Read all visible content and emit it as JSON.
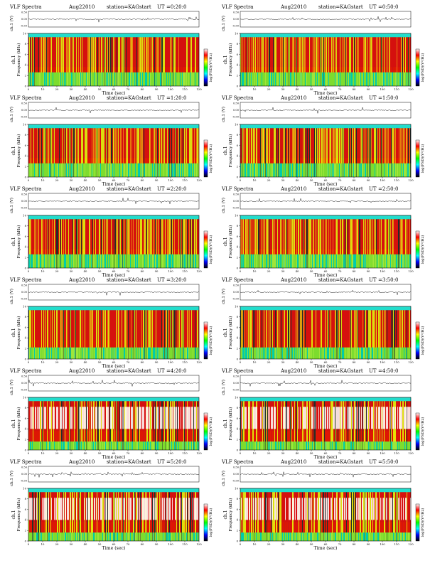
{
  "chart_data": [
    {
      "type": "heatmap",
      "title": "VLF Spectra",
      "date": "Aug22010",
      "station": "station=KAG",
      "start_label": "start",
      "ut_label": "UT",
      "start_ut": "=0:20:0",
      "xlabel": "Time (sec)",
      "ylabel": "Frequency (kHz)",
      "top_ylabel": "ch.1 (V)",
      "top_ticks": [
        "0.50",
        "0.00",
        "-0.50"
      ],
      "colorbar_label": "log(PSD)(V²/Hz)",
      "xlim": [
        0,
        120
      ],
      "ylim": [
        0,
        10
      ],
      "x_ticks": [
        0,
        10,
        20,
        30,
        40,
        50,
        60,
        70,
        80,
        90,
        100,
        110,
        120
      ],
      "y_ticks": [
        0,
        2,
        4,
        6,
        8,
        10
      ]
    },
    {
      "type": "heatmap",
      "title": "VLF Spectra",
      "date": "Aug22010",
      "station": "station=KAG",
      "start_label": "start",
      "ut_label": "UT",
      "start_ut": "=0:50:0",
      "xlabel": "Time (sec)",
      "ylabel": "Frequency (kHz)",
      "top_ylabel": "ch.1 (V)",
      "top_ticks": [
        "0.50",
        "0.00",
        "-0.50"
      ],
      "colorbar_label": "log(PSD)(V²/Hz)",
      "xlim": [
        0,
        120
      ],
      "ylim": [
        0,
        10
      ],
      "x_ticks": [
        0,
        10,
        20,
        30,
        40,
        50,
        60,
        70,
        80,
        90,
        100,
        110,
        120
      ],
      "y_ticks": [
        0,
        2,
        4,
        6,
        8,
        10
      ]
    },
    {
      "type": "heatmap",
      "title": "VLF Spectra",
      "date": "Aug22010",
      "station": "station=KAG",
      "start_label": "start",
      "ut_label": "UT",
      "start_ut": "=1:20:0",
      "xlabel": "Time (sec)",
      "ylabel": "Frequency (kHz)",
      "top_ylabel": "ch.1 (V)",
      "top_ticks": [
        "0.50",
        "0.00",
        "-0.50"
      ],
      "colorbar_label": "log(PSD)(V²/Hz)",
      "xlim": [
        0,
        120
      ],
      "ylim": [
        0,
        10
      ],
      "x_ticks": [
        0,
        10,
        20,
        30,
        40,
        50,
        60,
        70,
        80,
        90,
        100,
        110,
        120
      ],
      "y_ticks": [
        0,
        2,
        4,
        6,
        8,
        10
      ]
    },
    {
      "type": "heatmap",
      "title": "VLF Spectra",
      "date": "Aug22010",
      "station": "station=KAG",
      "start_label": "start",
      "ut_label": "UT",
      "start_ut": "=1:50:0",
      "xlabel": "Time (sec)",
      "ylabel": "Frequency (kHz)",
      "top_ylabel": "ch.1 (V)",
      "top_ticks": [
        "0.50",
        "0.00",
        "-0.50"
      ],
      "colorbar_label": "log(PSD)(V²/Hz)",
      "xlim": [
        0,
        120
      ],
      "ylim": [
        0,
        10
      ],
      "x_ticks": [
        0,
        10,
        20,
        30,
        40,
        50,
        60,
        70,
        80,
        90,
        100,
        110,
        120
      ],
      "y_ticks": [
        0,
        2,
        4,
        6,
        8,
        10
      ]
    },
    {
      "type": "heatmap",
      "title": "VLF Spectra",
      "date": "Aug22010",
      "station": "station=KAG",
      "start_label": "start",
      "ut_label": "UT",
      "start_ut": "=2:20:0",
      "xlabel": "Time (sec)",
      "ylabel": "Frequency (kHz)",
      "top_ylabel": "ch.1 (V)",
      "top_ticks": [
        "0.50",
        "0.00",
        "-0.50"
      ],
      "colorbar_label": "log(PSD)(V²/Hz)",
      "xlim": [
        0,
        120
      ],
      "ylim": [
        0,
        10
      ],
      "x_ticks": [
        0,
        10,
        20,
        30,
        40,
        50,
        60,
        70,
        80,
        90,
        100,
        110,
        120
      ],
      "y_ticks": [
        0,
        2,
        4,
        6,
        8,
        10
      ]
    },
    {
      "type": "heatmap",
      "title": "VLF Spectra",
      "date": "Aug22010",
      "station": "station=KAG",
      "start_label": "start",
      "ut_label": "UT",
      "start_ut": "=2:50:0",
      "xlabel": "Time (sec)",
      "ylabel": "Frequency (kHz)",
      "top_ylabel": "ch.1 (V)",
      "top_ticks": [
        "0.50",
        "0.00",
        "-0.50"
      ],
      "colorbar_label": "log(PSD)(V²/Hz)",
      "xlim": [
        0,
        120
      ],
      "ylim": [
        0,
        10
      ],
      "x_ticks": [
        0,
        10,
        20,
        30,
        40,
        50,
        60,
        70,
        80,
        90,
        100,
        110,
        120
      ],
      "y_ticks": [
        0,
        2,
        4,
        6,
        8,
        10
      ]
    },
    {
      "type": "heatmap",
      "title": "VLF Spectra",
      "date": "Aug22010",
      "station": "station=KAG",
      "start_label": "start",
      "ut_label": "UT",
      "start_ut": "=3:20:0",
      "xlabel": "Time (sec)",
      "ylabel": "Frequency (kHz)",
      "top_ylabel": "ch.1 (V)",
      "top_ticks": [
        "0.50",
        "0.00",
        "-0.50"
      ],
      "colorbar_label": "log(PSD)(V²/Hz)",
      "xlim": [
        0,
        120
      ],
      "ylim": [
        0,
        10
      ],
      "x_ticks": [
        0,
        10,
        20,
        30,
        40,
        50,
        60,
        70,
        80,
        90,
        100,
        110,
        120
      ],
      "y_ticks": [
        0,
        2,
        4,
        6,
        8,
        10
      ]
    },
    {
      "type": "heatmap",
      "title": "VLF Spectra",
      "date": "Aug22010",
      "station": "station=KAG",
      "start_label": "start",
      "ut_label": "UT",
      "start_ut": "=3:50:0",
      "xlabel": "Time (sec)",
      "ylabel": "Frequency (kHz)",
      "top_ylabel": "ch.1 (V)",
      "top_ticks": [
        "0.50",
        "0.00",
        "-0.50"
      ],
      "colorbar_label": "log(PSD)(V²/Hz)",
      "xlim": [
        0,
        120
      ],
      "ylim": [
        0,
        10
      ],
      "x_ticks": [
        0,
        10,
        20,
        30,
        40,
        50,
        60,
        70,
        80,
        90,
        100,
        110,
        120
      ],
      "y_ticks": [
        0,
        2,
        4,
        6,
        8,
        10
      ]
    },
    {
      "type": "heatmap",
      "title": "VLF Spectra",
      "date": "Aug22010",
      "station": "station=KAG",
      "start_label": "start",
      "ut_label": "UT",
      "start_ut": "=4:20:0",
      "xlabel": "Time (sec)",
      "ylabel": "Frequency (kHz)",
      "top_ylabel": "ch.1 (V)",
      "top_ticks": [
        "0.50",
        "0.00",
        "-0.50"
      ],
      "colorbar_label": "log(PSD)(V²/Hz)",
      "xlim": [
        0,
        120
      ],
      "ylim": [
        0,
        10
      ],
      "x_ticks": [
        0,
        10,
        20,
        30,
        40,
        50,
        60,
        70,
        80,
        90,
        100,
        110,
        120
      ],
      "y_ticks": [
        0,
        2,
        4,
        6,
        8,
        10
      ]
    },
    {
      "type": "heatmap",
      "title": "VLF Spectra",
      "date": "Aug22010",
      "station": "station=KAG",
      "start_label": "start",
      "ut_label": "UT",
      "start_ut": "=4:50:0",
      "xlabel": "Time (sec)",
      "ylabel": "Frequency (kHz)",
      "top_ylabel": "ch.1 (V)",
      "top_ticks": [
        "0.50",
        "0.00",
        "-0.50"
      ],
      "colorbar_label": "log(PSD)(V²/Hz)",
      "xlim": [
        0,
        120
      ],
      "ylim": [
        0,
        10
      ],
      "x_ticks": [
        0,
        10,
        20,
        30,
        40,
        50,
        60,
        70,
        80,
        90,
        100,
        110,
        120
      ],
      "y_ticks": [
        0,
        2,
        4,
        6,
        8,
        10
      ]
    },
    {
      "type": "heatmap",
      "title": "VLF Spectra",
      "date": "Aug22010",
      "station": "station=KAG",
      "start_label": "start",
      "ut_label": "UT",
      "start_ut": "=5:20:0",
      "xlabel": "Time (sec)",
      "ylabel": "Frequency (kHz)",
      "top_ylabel": "ch.1 (V)",
      "top_ticks": [
        "0.50",
        "0.00",
        "-0.50"
      ],
      "colorbar_label": "log(PSD)(V²/Hz)",
      "xlim": [
        0,
        120
      ],
      "ylim": [
        0,
        10
      ],
      "x_ticks": [
        0,
        10,
        20,
        30,
        40,
        50,
        60,
        70,
        80,
        90,
        100,
        110,
        120
      ],
      "y_ticks": [
        0,
        2,
        4,
        6,
        8,
        10
      ]
    },
    {
      "type": "heatmap",
      "title": "VLF Spectra",
      "date": "Aug22010",
      "station": "station=KAG",
      "start_label": "start",
      "ut_label": "UT",
      "start_ut": "=5:50:0",
      "xlabel": "Time (sec)",
      "ylabel": "Frequency (kHz)",
      "top_ylabel": "ch.1 (V)",
      "top_ticks": [
        "0.50",
        "0.00",
        "-0.50"
      ],
      "colorbar_label": "log(PSD)(V²/Hz)",
      "xlim": [
        0,
        120
      ],
      "ylim": [
        0,
        10
      ],
      "x_ticks": [
        0,
        10,
        20,
        30,
        40,
        50,
        60,
        70,
        80,
        90,
        100,
        110,
        120
      ],
      "y_ticks": [
        0,
        2,
        4,
        6,
        8,
        10
      ]
    }
  ],
  "colors": {
    "background": "#00ccaa",
    "mid": "#7ddc2e",
    "yellow": "#f0e000",
    "orange": "#ff7a00",
    "red": "#e80000",
    "dark": "#202020",
    "colorbar": [
      "#ffffff",
      "#ff0000",
      "#ffff00",
      "#00ff00",
      "#00ffff",
      "#0000ff",
      "#000000"
    ]
  }
}
